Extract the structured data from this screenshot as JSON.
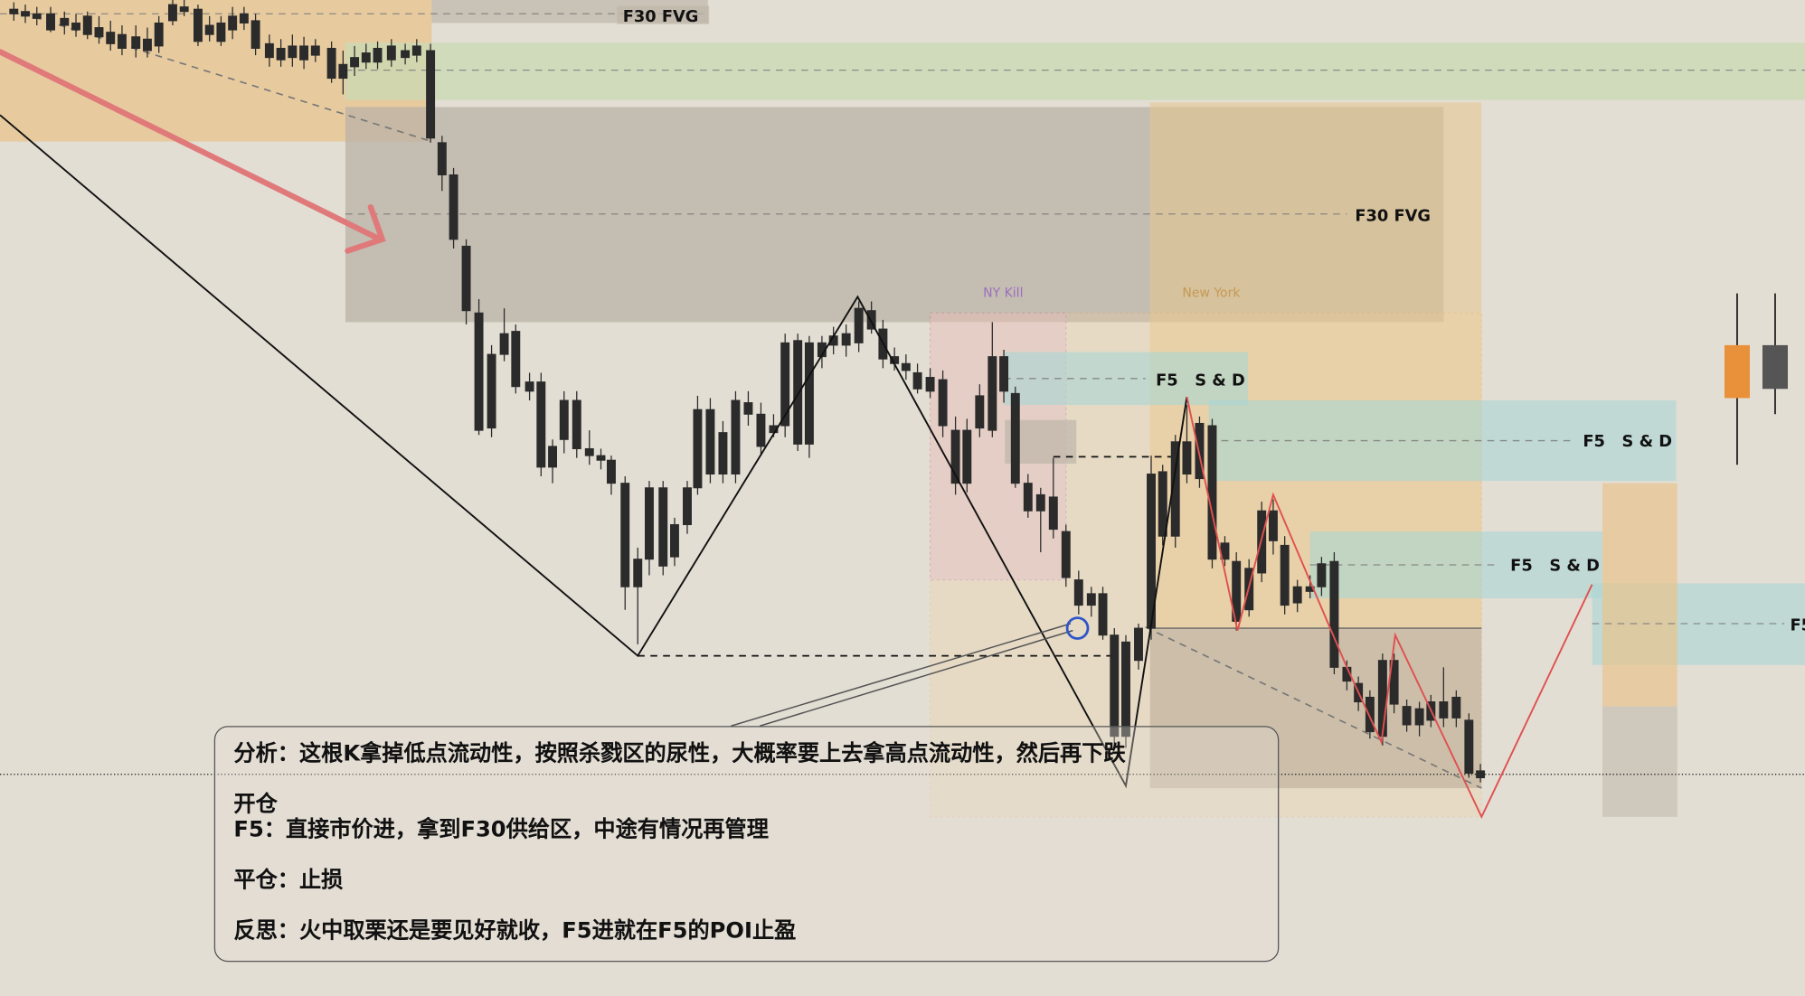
{
  "chart_data": {
    "type": "candlestick",
    "title": "",
    "zones": [
      {
        "kind": "fvg",
        "label": "F30  FVG",
        "timeframe": "F30"
      },
      {
        "kind": "fvg",
        "label": "F30  FVG",
        "timeframe": "F30"
      },
      {
        "kind": "supply_demand",
        "label": "F5   S & D",
        "timeframe": "F5"
      },
      {
        "kind": "supply_demand",
        "label": "F5   S & D",
        "timeframe": "F5"
      },
      {
        "kind": "supply_demand",
        "label": "F5   S & D",
        "timeframe": "F5"
      },
      {
        "kind": "supply_demand",
        "label": "F5",
        "timeframe": "F5"
      }
    ],
    "sessions": [
      {
        "label": "NY Kill",
        "color": "#9a6fc0"
      },
      {
        "label": "New York",
        "color": "#c49a52"
      }
    ],
    "colors": {
      "background": "#e3ded4",
      "bull_candle": "#a3a8ae",
      "bear_candle": "#2b2b2b",
      "fvg_zone": "#bdb6aa",
      "orange_zone": "#e8c48e",
      "green_zone": "#c9d9b4",
      "blue_zone": "#a9d6d4",
      "red_arrow": "#e07a7a",
      "red_projection": "#e05050",
      "marker_circle": "#2f56c8",
      "orange_candle": "#e8913a"
    },
    "grid": false
  },
  "annotation": {
    "analysis": "分析：这根K拿掉低点流动性，按照杀戮区的尿性，大概率要上去拿高点流动性，然后再下跌",
    "open_heading": "开仓",
    "open_detail": "F5：直接市价进，拿到F30供给区，中途有情况再管理",
    "close": "平仓：止损",
    "reflection": "反思：火中取栗还是要见好就收，F5进就在F5的POI止盈"
  }
}
